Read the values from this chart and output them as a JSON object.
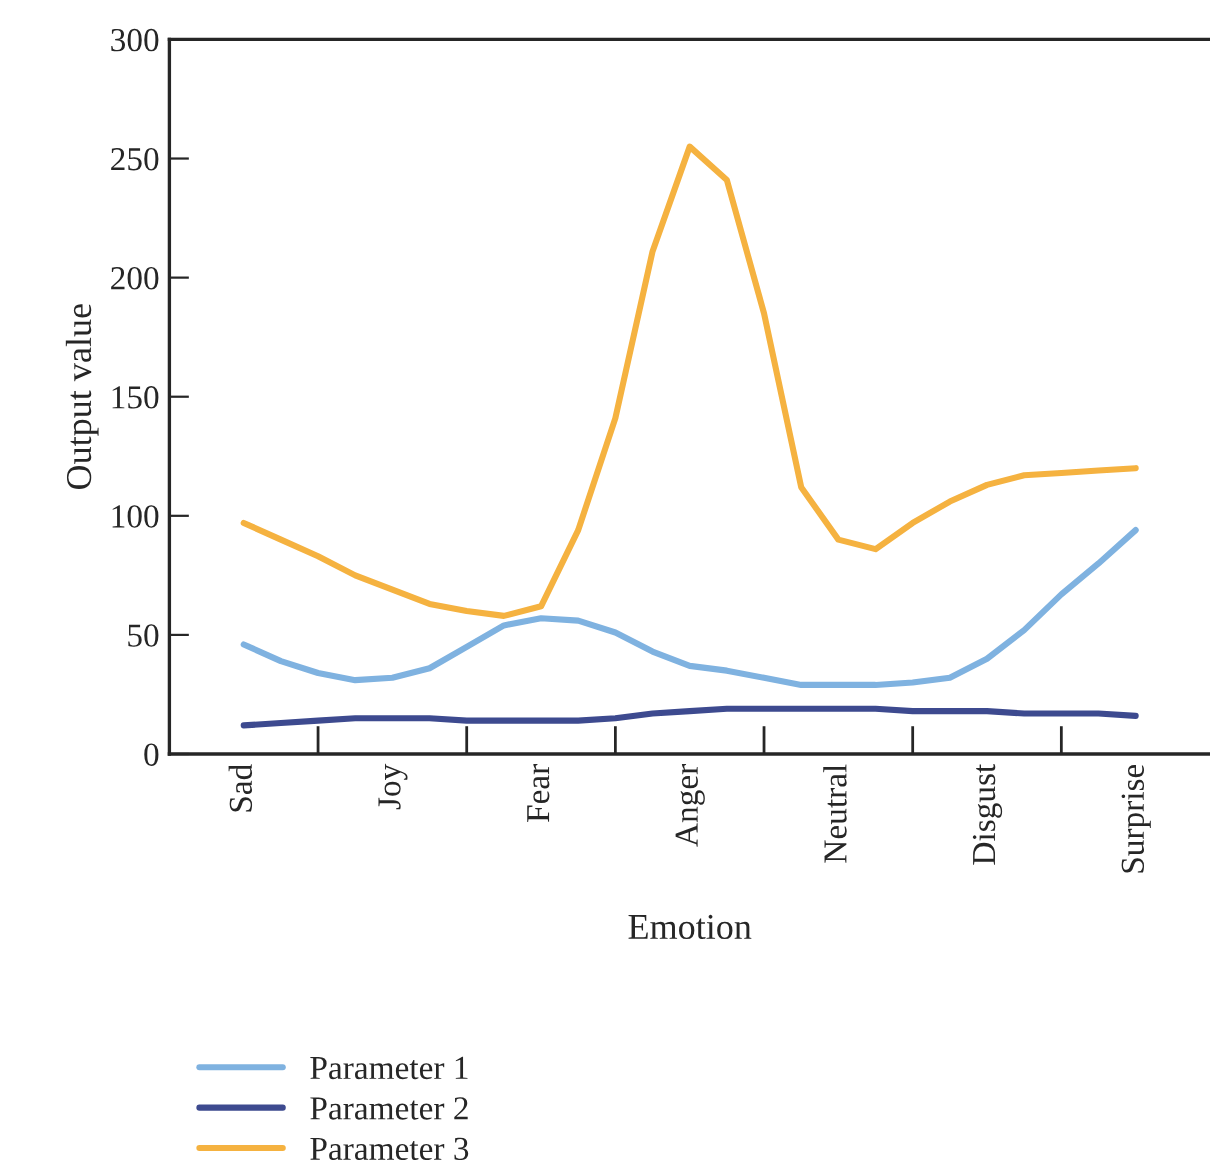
{
  "chart_data": {
    "type": "line",
    "xlabel": "Emotion",
    "ylabel": "Output value",
    "categories": [
      "Sad",
      null,
      null,
      null,
      "Joy",
      null,
      null,
      null,
      "Fear",
      null,
      null,
      null,
      "Anger",
      null,
      null,
      null,
      "Neutral",
      null,
      null,
      null,
      "Disgust",
      null,
      null,
      null,
      "Surprise"
    ],
    "series": [
      {
        "name": "Parameter 1",
        "color": "#7fb2e0",
        "values": [
          46,
          39,
          34,
          31,
          32,
          36,
          45,
          54,
          57,
          56,
          51,
          43,
          37,
          35,
          32,
          29,
          29,
          29,
          30,
          32,
          40,
          52,
          67,
          80,
          94
        ]
      },
      {
        "name": "Parameter 2",
        "color": "#3d4a8f",
        "values": [
          12,
          13,
          14,
          15,
          15,
          15,
          14,
          14,
          14,
          14,
          15,
          17,
          18,
          19,
          19,
          19,
          19,
          19,
          18,
          18,
          18,
          17,
          17,
          17,
          16
        ]
      },
      {
        "name": "Parameter 3",
        "color": "#f5b240",
        "values": [
          97,
          90,
          83,
          75,
          69,
          63,
          60,
          58,
          62,
          94,
          141,
          211,
          255,
          241,
          185,
          112,
          90,
          86,
          97,
          106,
          113,
          117,
          118,
          119,
          120
        ]
      }
    ],
    "ylim": [
      0,
      300
    ],
    "yticks": [
      0,
      50,
      100,
      150,
      200,
      250,
      300
    ],
    "grid": false,
    "legend": "bottom left",
    "marker": "none",
    "line_style": "solid"
  }
}
